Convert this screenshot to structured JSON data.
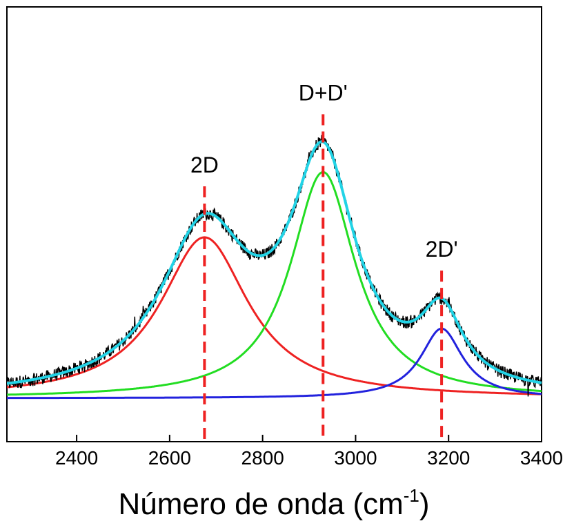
{
  "chart_data": {
    "type": "line",
    "title": "",
    "xlabel": "Número de onda (cm",
    "xlabel_superscript": "-1",
    "xlabel_suffix": ")",
    "ylabel": "",
    "xlim": [
      2250,
      3400
    ],
    "ylim": [
      0,
      1
    ],
    "y_ticks_shown": false,
    "grid": false,
    "x_ticks": [
      2400,
      2600,
      2800,
      3000,
      3200,
      3400
    ],
    "x_tick_labels": [
      "2400",
      "2600",
      "2800",
      "3000",
      "3200",
      "3400"
    ],
    "colors": {
      "measured": "#000000",
      "fit_total": "#22d3e6",
      "peak_2D": "#ee2222",
      "peak_DD": "#22dd22",
      "peak_2Dp": "#2222dd",
      "marker": "#ee2222"
    },
    "baseline": 0.1,
    "peaks": [
      {
        "label": "2D",
        "center": 2675,
        "height": 0.37,
        "hwhm": 115,
        "color_key": "peak_2D"
      },
      {
        "label": "D+D'",
        "center": 2930,
        "height": 0.52,
        "hwhm": 85,
        "color_key": "peak_DD"
      },
      {
        "label": "2D'",
        "center": 3185,
        "height": 0.16,
        "hwhm": 55,
        "color_key": "peak_2Dp"
      }
    ],
    "markers": [
      {
        "label": "2D",
        "x": 2675
      },
      {
        "label": "D+D'",
        "x": 2930
      },
      {
        "label": "2D'",
        "x": 3185
      }
    ]
  }
}
